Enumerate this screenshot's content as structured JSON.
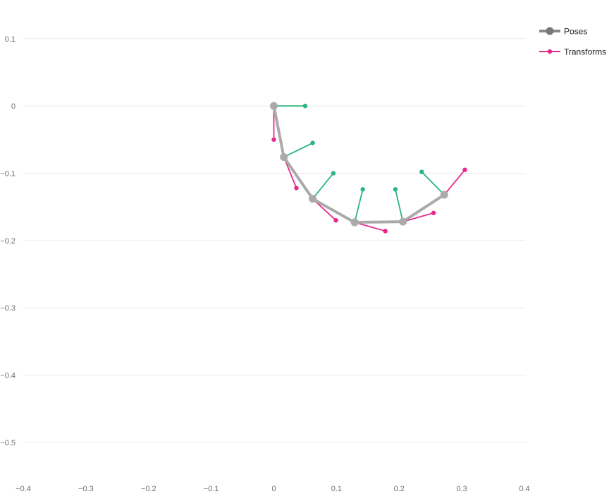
{
  "colors": {
    "pose": "#aaaaaa",
    "pose_legend": "#888888",
    "transform_red": "#e7298a",
    "transform_green": "#2cb57d",
    "grid": "#ebebeb",
    "tick": "#6e6e6e"
  },
  "legend": {
    "position": "top-right",
    "items": [
      {
        "label": "Poses",
        "icon": "gray-line-marker-icon"
      },
      {
        "label": "Transforms",
        "icon": "pink-line-marker-icon"
      }
    ]
  },
  "chart_data": {
    "type": "line",
    "grid": true,
    "xlim": [
      -0.4,
      0.4
    ],
    "ylim": [
      -0.56,
      0.126
    ],
    "xticks": [
      -0.4,
      -0.3,
      -0.2,
      -0.1,
      0,
      0.1,
      0.2,
      0.3,
      0.4
    ],
    "xtick_labels": [
      "−0.4",
      "−0.3",
      "−0.2",
      "−0.1",
      "0",
      "0.1",
      "0.2",
      "0.3",
      "0.4"
    ],
    "yticks": [
      0.1,
      0,
      -0.1,
      -0.2,
      -0.3,
      -0.4,
      -0.5
    ],
    "ytick_labels": [
      "0.1",
      "0",
      "−0.1",
      "−0.2",
      "−0.3",
      "−0.4",
      "−0.5"
    ],
    "series": [
      {
        "name": "Poses",
        "x": [
          0,
          0.016,
          0.062,
          0.129,
          0.206,
          0.272
        ],
        "y": [
          0,
          -0.076,
          -0.138,
          -0.173,
          -0.172,
          -0.132
        ]
      },
      {
        "name": "Transforms",
        "segments": [
          {
            "color": "red",
            "from": [
              0,
              0
            ],
            "to": [
              0,
              -0.05
            ]
          },
          {
            "color": "green",
            "from": [
              0,
              0
            ],
            "to": [
              0.05,
              0
            ]
          },
          {
            "color": "red",
            "from": [
              0.016,
              -0.076
            ],
            "to": [
              0.036,
              -0.122
            ]
          },
          {
            "color": "green",
            "from": [
              0.016,
              -0.076
            ],
            "to": [
              0.062,
              -0.055
            ]
          },
          {
            "color": "red",
            "from": [
              0.062,
              -0.138
            ],
            "to": [
              0.099,
              -0.17
            ]
          },
          {
            "color": "green",
            "from": [
              0.062,
              -0.138
            ],
            "to": [
              0.095,
              -0.1
            ]
          },
          {
            "color": "red",
            "from": [
              0.129,
              -0.173
            ],
            "to": [
              0.178,
              -0.186
            ]
          },
          {
            "color": "green",
            "from": [
              0.129,
              -0.173
            ],
            "to": [
              0.142,
              -0.124
            ]
          },
          {
            "color": "red",
            "from": [
              0.206,
              -0.172
            ],
            "to": [
              0.255,
              -0.159
            ]
          },
          {
            "color": "green",
            "from": [
              0.206,
              -0.172
            ],
            "to": [
              0.194,
              -0.124
            ]
          },
          {
            "color": "red",
            "from": [
              0.272,
              -0.132
            ],
            "to": [
              0.305,
              -0.095
            ]
          },
          {
            "color": "green",
            "from": [
              0.272,
              -0.132
            ],
            "to": [
              0.236,
              -0.098
            ]
          }
        ]
      }
    ]
  }
}
